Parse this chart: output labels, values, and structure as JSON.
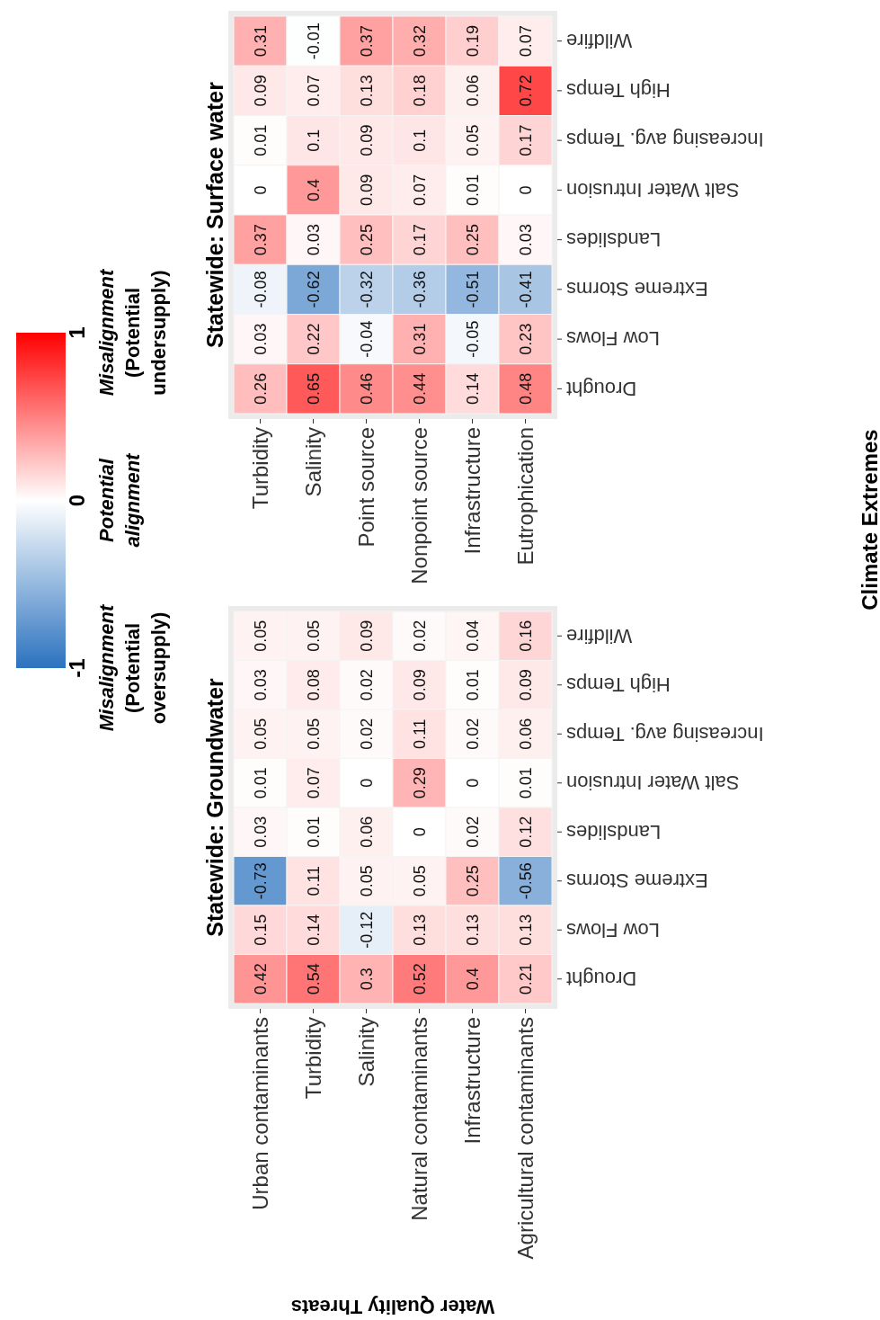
{
  "chart_data": [
    {
      "type": "heatmap",
      "title": "Statewide: Groundwater",
      "xlabel": "Water Quality Threats",
      "categories": [
        "Urban contaminants",
        "Turbidity",
        "Salinity",
        "Natural contaminants",
        "Infrastructure",
        "Agricultural contaminants"
      ],
      "y_categories": [
        "Wildfire",
        "High Temps",
        "Increasing avg. Temps",
        "Salt Water Intrusion",
        "Landslides",
        "Extreme Storms",
        "Low Flows",
        "Drought"
      ],
      "cells": [
        [
          0.05,
          0.05,
          0.09,
          0.02,
          0.04,
          0.16
        ],
        [
          0.03,
          0.08,
          0.02,
          0.09,
          0.01,
          0.09
        ],
        [
          0.05,
          0.05,
          0.02,
          0.11,
          0.02,
          0.06
        ],
        [
          0.01,
          0.07,
          0,
          0.29,
          0,
          0.01
        ],
        [
          0.03,
          0.01,
          0.06,
          0,
          0.02,
          0.12
        ],
        [
          -0.73,
          0.11,
          0.05,
          0.05,
          0.25,
          -0.56
        ],
        [
          0.15,
          0.14,
          -0.12,
          0.13,
          0.13,
          0.13
        ],
        [
          0.42,
          0.54,
          0.3,
          0.52,
          0.4,
          0.21
        ]
      ],
      "data_labels": true,
      "clim": [
        -1,
        1
      ],
      "cticks": [
        -1,
        0,
        1
      ],
      "annotations": [
        "Misalignment (Potential oversupply)",
        "Potential alignment",
        "Misalignment (Potential undersupply)"
      ]
    },
    {
      "type": "heatmap",
      "title": "Statewide: Surface water",
      "y2label": "Climate Extremes",
      "categories": [
        "Turbidity",
        "Salinity",
        "Point source",
        "Nonpoint source",
        "Infrastructure",
        "Eutrophication"
      ],
      "y_categories": [
        "Wildfire",
        "High Temps",
        "Increasing avg. Temps",
        "Salt Water Intrusion",
        "Landslides",
        "Extreme Storms",
        "Low Flows",
        "Drought"
      ],
      "cells": [
        [
          0.31,
          -0.01,
          0.37,
          0.32,
          0.19,
          0.07
        ],
        [
          0.09,
          0.07,
          0.13,
          0.18,
          0.06,
          0.72
        ],
        [
          0.01,
          0.1,
          0.09,
          0.1,
          0.05,
          0.17
        ],
        [
          0,
          0.4,
          0.09,
          0.07,
          0.01,
          0
        ],
        [
          0.37,
          0.03,
          0.25,
          0.17,
          0.25,
          0.03
        ],
        [
          -0.08,
          -0.62,
          -0.32,
          -0.36,
          -0.51,
          -0.41
        ],
        [
          0.03,
          0.22,
          -0.04,
          0.31,
          -0.05,
          0.23
        ],
        [
          0.26,
          0.65,
          0.46,
          0.44,
          0.14,
          0.48
        ]
      ],
      "data_labels": true
    }
  ]
}
